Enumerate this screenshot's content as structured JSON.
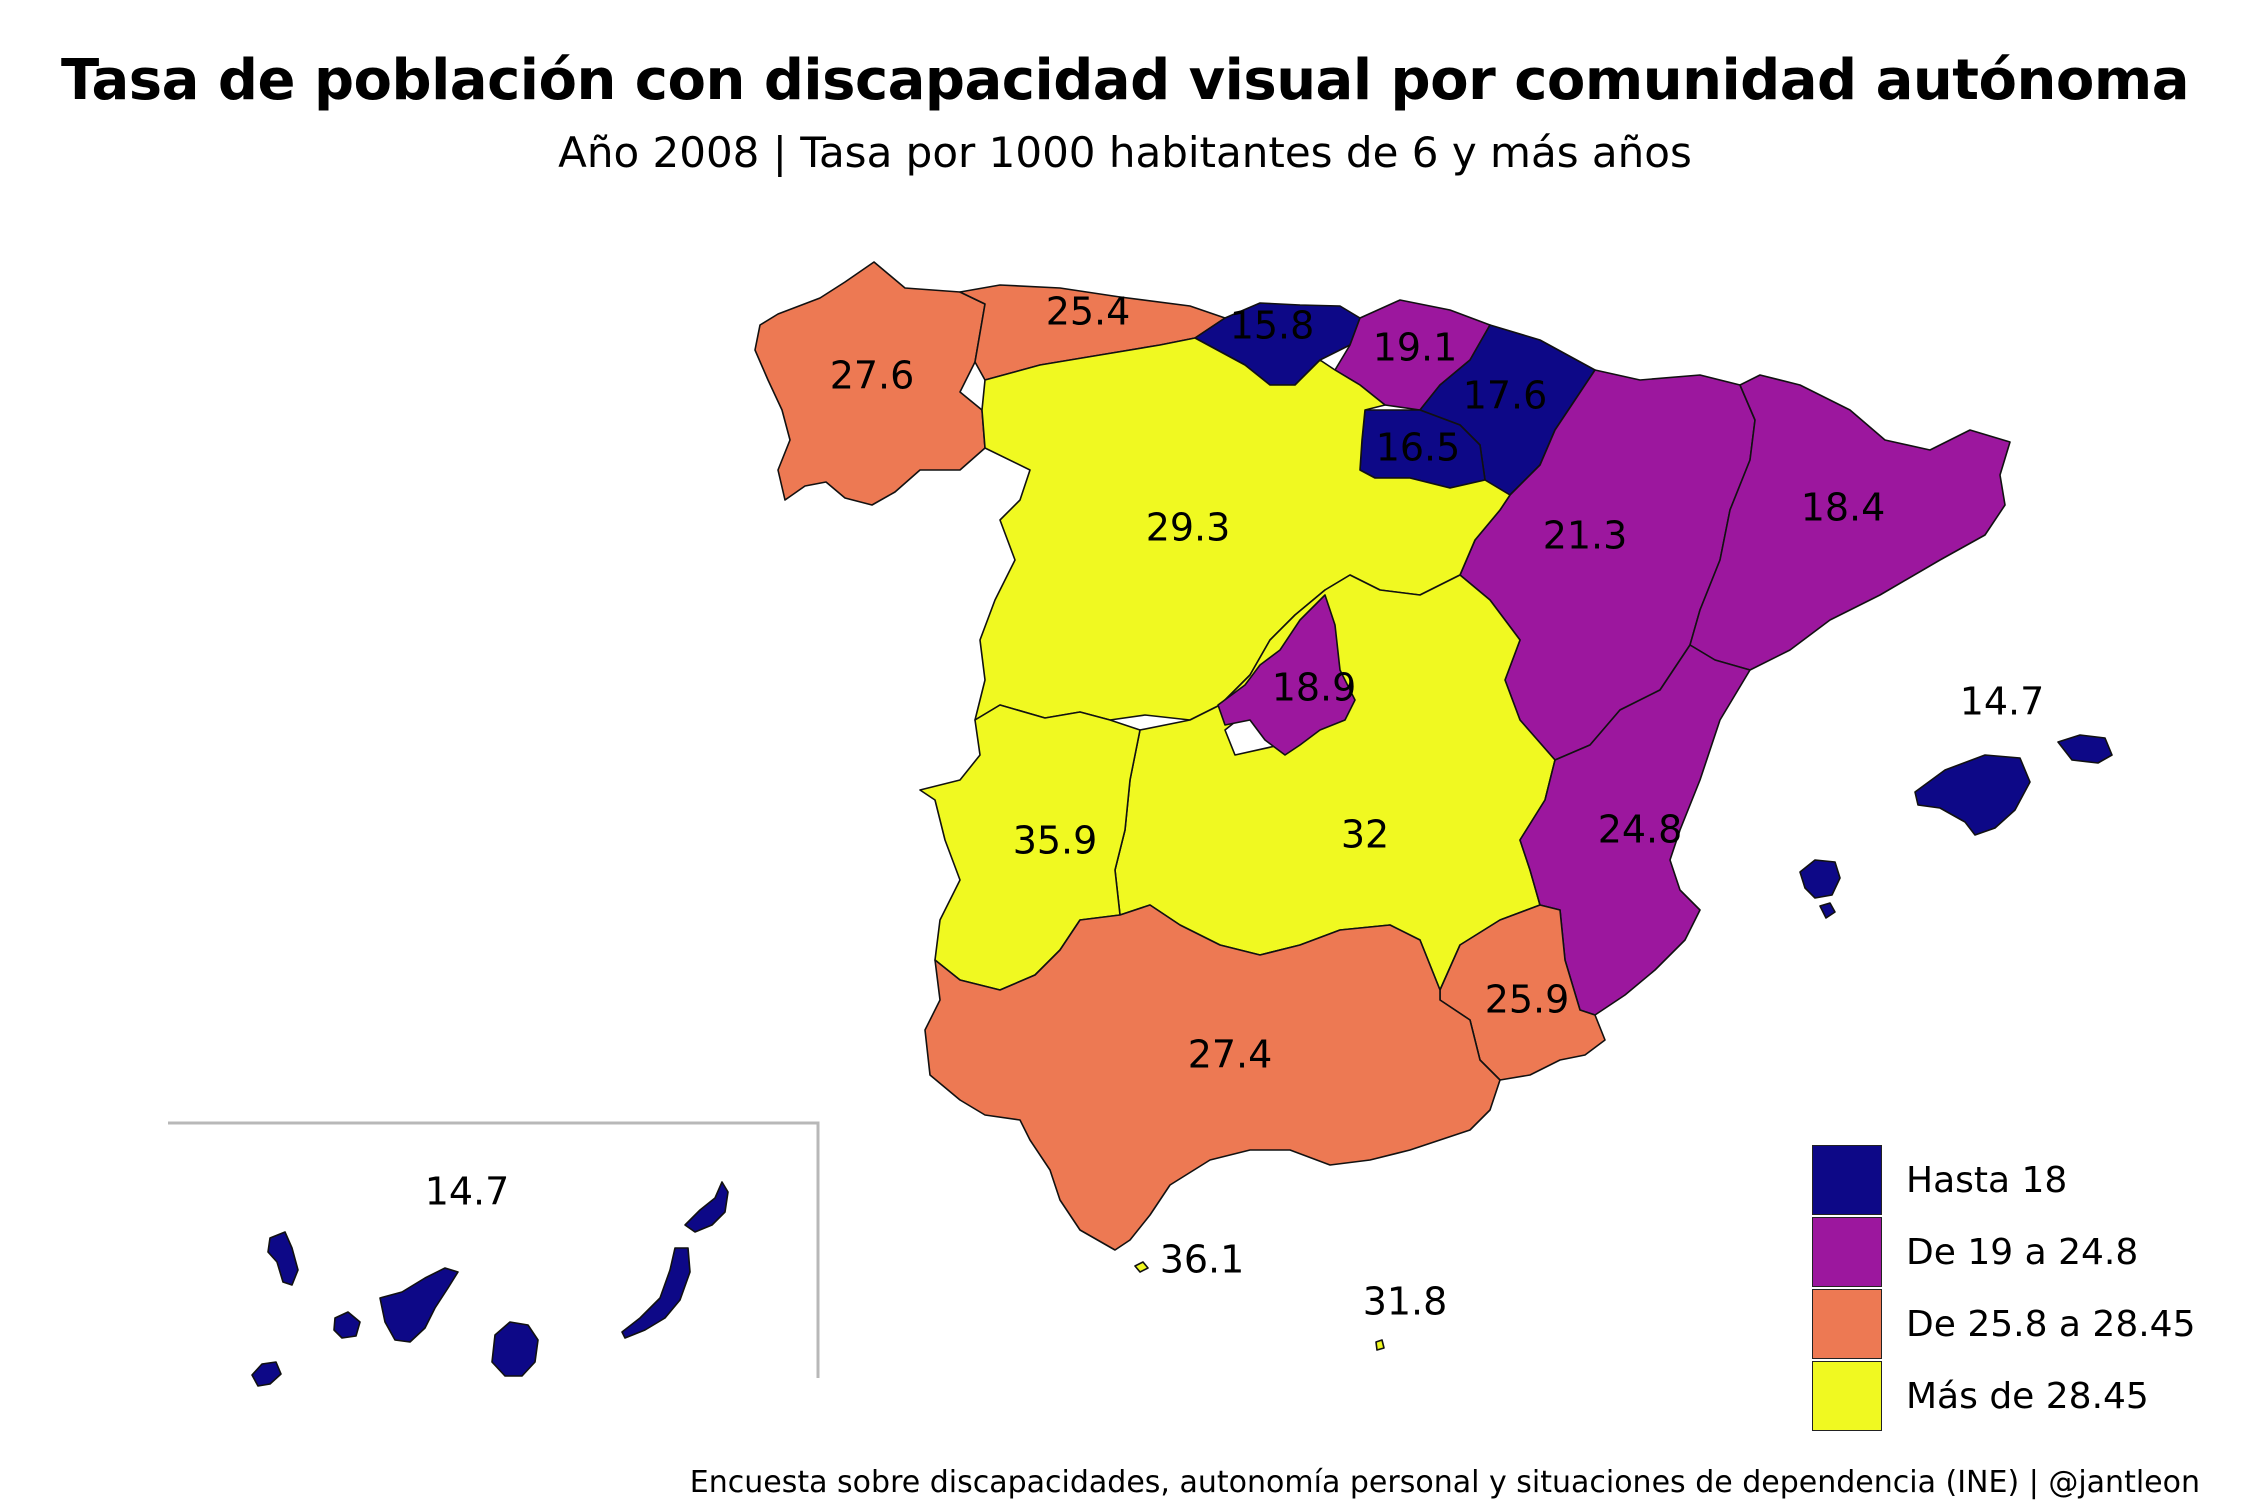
{
  "title": "Tasa de población con discapacidad visual por comunidad autónoma",
  "subtitle": "Año 2008 | Tasa por 1000 habitantes de 6 y más años",
  "source": "Encuesta sobre discapacidades, autonomía personal y situaciones de dependencia (INE) | @jantleon",
  "colors": {
    "hasta_18": "#0d0887",
    "de_19_a_24_8": "#9c179e",
    "de_25_8_a_28_45": "#ed7953",
    "mas_de_28_45": "#f0f921"
  },
  "legend": [
    {
      "label": "Hasta 18",
      "color": "#0d0887"
    },
    {
      "label": "De 19 a 24.8",
      "color": "#9c179e"
    },
    {
      "label": "De 25.8 a 28.45",
      "color": "#ed7953"
    },
    {
      "label": "Más de 28.45",
      "color": "#f0f921"
    }
  ],
  "regions": [
    {
      "id": "galicia",
      "value": "27.6"
    },
    {
      "id": "asturias",
      "value": "25.4"
    },
    {
      "id": "cantabria",
      "value": "15.8"
    },
    {
      "id": "pais-vasco",
      "value": "19.1"
    },
    {
      "id": "navarra",
      "value": "17.6"
    },
    {
      "id": "la-rioja",
      "value": "16.5"
    },
    {
      "id": "aragon",
      "value": "21.3"
    },
    {
      "id": "cataluna",
      "value": "18.4"
    },
    {
      "id": "castilla-y-leon",
      "value": "29.3"
    },
    {
      "id": "madrid",
      "value": "18.9"
    },
    {
      "id": "extremadura",
      "value": "35.9"
    },
    {
      "id": "castilla-la-mancha",
      "value": "32"
    },
    {
      "id": "comunidad-valenciana",
      "value": "24.8"
    },
    {
      "id": "murcia",
      "value": "25.9"
    },
    {
      "id": "andalucia",
      "value": "27.4"
    },
    {
      "id": "islas-baleares",
      "value": "14.7"
    },
    {
      "id": "canarias",
      "value": "14.7"
    },
    {
      "id": "ceuta",
      "value": "36.1"
    },
    {
      "id": "melilla",
      "value": "31.8"
    }
  ]
}
